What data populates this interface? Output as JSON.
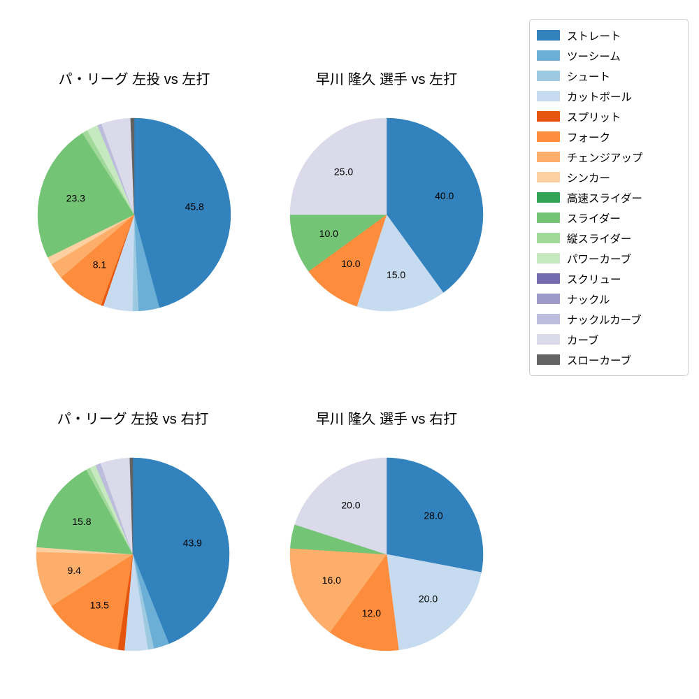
{
  "page": {
    "background": "#ffffff"
  },
  "legend": {
    "items": [
      {
        "label": "ストレート",
        "color": "#3182bd"
      },
      {
        "label": "ツーシーム",
        "color": "#6baed6"
      },
      {
        "label": "シュート",
        "color": "#9ecae1"
      },
      {
        "label": "カットボール",
        "color": "#c6dbef"
      },
      {
        "label": "スプリット",
        "color": "#e6550d"
      },
      {
        "label": "フォーク",
        "color": "#fd8d3c"
      },
      {
        "label": "チェンジアップ",
        "color": "#fdae6b"
      },
      {
        "label": "シンカー",
        "color": "#fdd0a2"
      },
      {
        "label": "高速スライダー",
        "color": "#31a354"
      },
      {
        "label": "スライダー",
        "color": "#74c476"
      },
      {
        "label": "縦スライダー",
        "color": "#a1d99b"
      },
      {
        "label": "パワーカーブ",
        "color": "#c7e9c0"
      },
      {
        "label": "スクリュー",
        "color": "#756bb1"
      },
      {
        "label": "ナックル",
        "color": "#9e9ac8"
      },
      {
        "label": "ナックルカーブ",
        "color": "#bcbddc"
      },
      {
        "label": "カーブ",
        "color": "#dadaeb"
      },
      {
        "label": "スローカーブ",
        "color": "#636363"
      }
    ]
  },
  "chart_data": [
    {
      "type": "pie",
      "title": "パ・リーグ 左投 vs 左打",
      "start_angle_deg": 90,
      "direction": "clockwise",
      "label_format": "%.1f",
      "label_min_pct": 5,
      "labeled_values_visible": [
        45.8,
        8.1,
        23.3
      ],
      "slices": [
        {
          "name": "ストレート",
          "value": 45.8
        },
        {
          "name": "ツーシーム",
          "value": 3.5,
          "estimated": true
        },
        {
          "name": "シュート",
          "value": 1.0,
          "estimated": true
        },
        {
          "name": "カットボール",
          "value": 4.9,
          "estimated": true
        },
        {
          "name": "スプリット",
          "value": 0.4,
          "estimated": true
        },
        {
          "name": "フォーク",
          "value": 8.1
        },
        {
          "name": "チェンジアップ",
          "value": 2.7,
          "estimated": true
        },
        {
          "name": "シンカー",
          "value": 1.3,
          "estimated": true
        },
        {
          "name": "スライダー",
          "value": 23.3
        },
        {
          "name": "縦スライダー",
          "value": 0.9,
          "estimated": true
        },
        {
          "name": "パワーカーブ",
          "value": 1.9,
          "estimated": true
        },
        {
          "name": "ナックルカーブ",
          "value": 0.7,
          "estimated": true
        },
        {
          "name": "カーブ",
          "value": 4.9,
          "estimated": true
        },
        {
          "name": "スローカーブ",
          "value": 0.6,
          "estimated": true
        }
      ]
    },
    {
      "type": "pie",
      "title": "早川 隆久 選手 vs 左打",
      "start_angle_deg": 90,
      "direction": "clockwise",
      "label_format": "%.1f",
      "label_min_pct": 5,
      "labeled_values_visible": [
        40.0,
        15.0,
        10.0,
        10.0,
        25.0
      ],
      "slices": [
        {
          "name": "ストレート",
          "value": 40.0
        },
        {
          "name": "カットボール",
          "value": 15.0
        },
        {
          "name": "フォーク",
          "value": 10.0
        },
        {
          "name": "スライダー",
          "value": 10.0
        },
        {
          "name": "カーブ",
          "value": 25.0
        }
      ]
    },
    {
      "type": "pie",
      "title": "パ・リーグ 左投 vs 右打",
      "start_angle_deg": 90,
      "direction": "clockwise",
      "label_format": "%.1f",
      "label_min_pct": 5,
      "labeled_values_visible": [
        43.9,
        13.5,
        9.4,
        15.8
      ],
      "slices": [
        {
          "name": "ストレート",
          "value": 43.9
        },
        {
          "name": "ツーシーム",
          "value": 2.6,
          "estimated": true
        },
        {
          "name": "シュート",
          "value": 1.0,
          "estimated": true
        },
        {
          "name": "カットボール",
          "value": 3.9,
          "estimated": true
        },
        {
          "name": "スプリット",
          "value": 1.1,
          "estimated": true
        },
        {
          "name": "フォーク",
          "value": 13.5
        },
        {
          "name": "チェンジアップ",
          "value": 9.4
        },
        {
          "name": "シンカー",
          "value": 0.8,
          "estimated": true
        },
        {
          "name": "スライダー",
          "value": 15.8
        },
        {
          "name": "縦スライダー",
          "value": 0.7,
          "estimated": true
        },
        {
          "name": "パワーカーブ",
          "value": 1.0,
          "estimated": true
        },
        {
          "name": "ナックルカーブ",
          "value": 0.9,
          "estimated": true
        },
        {
          "name": "カーブ",
          "value": 4.9,
          "estimated": true
        },
        {
          "name": "スローカーブ",
          "value": 0.5,
          "estimated": true
        }
      ]
    },
    {
      "type": "pie",
      "title": "早川 隆久 選手 vs 右打",
      "start_angle_deg": 90,
      "direction": "clockwise",
      "label_format": "%.1f",
      "label_min_pct": 5,
      "labeled_values_visible": [
        28.0,
        20.0,
        12.0,
        16.0,
        20.0
      ],
      "slices": [
        {
          "name": "ストレート",
          "value": 28.0
        },
        {
          "name": "カットボール",
          "value": 20.0
        },
        {
          "name": "フォーク",
          "value": 12.0
        },
        {
          "name": "チェンジアップ",
          "value": 16.0
        },
        {
          "name": "スライダー",
          "value": 4.0,
          "estimated": true
        },
        {
          "name": "カーブ",
          "value": 20.0
        }
      ]
    }
  ]
}
